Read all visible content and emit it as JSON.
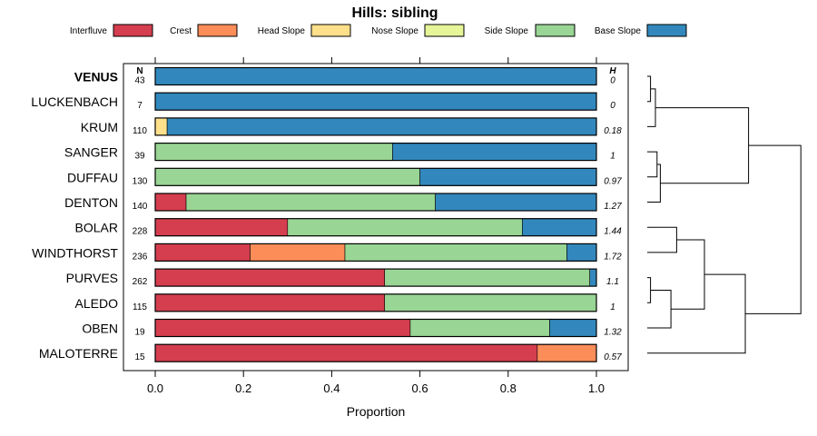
{
  "chart_data": {
    "type": "bar",
    "orientation": "horizontal",
    "stacked": true,
    "title": "Hills: sibling",
    "xlabel": "Proportion",
    "ylabel": "",
    "xlim": [
      0,
      1
    ],
    "x_ticks": [
      "0.0",
      "0.2",
      "0.4",
      "0.6",
      "0.8",
      "1.0"
    ],
    "legend": {
      "placement": "top",
      "entries": [
        {
          "name": "Interfluve",
          "color": "#d53e4f"
        },
        {
          "name": "Crest",
          "color": "#fc8d59"
        },
        {
          "name": "Head Slope",
          "color": "#fee08b"
        },
        {
          "name": "Nose Slope",
          "color": "#e6f598"
        },
        {
          "name": "Side Slope",
          "color": "#99d594"
        },
        {
          "name": "Base Slope",
          "color": "#3288bd"
        }
      ]
    },
    "n_header": "N",
    "h_header": "H",
    "categories": [
      "VENUS",
      "LUCKENBACH",
      "KRUM",
      "SANGER",
      "DUFFAU",
      "DENTON",
      "BOLAR",
      "WINDTHORST",
      "PURVES",
      "ALEDO",
      "OBEN",
      "MALOTERRE"
    ],
    "bold_category": "VENUS",
    "n": [
      "43",
      "7",
      "110",
      "39",
      "130",
      "140",
      "228",
      "236",
      "262",
      "115",
      "19",
      "15"
    ],
    "h": [
      "0",
      "0",
      "0.18",
      "1",
      "0.97",
      "1.27",
      "1.44",
      "1.72",
      "1.1",
      "1",
      "1.32",
      "0.57"
    ],
    "series": [
      {
        "name": "Interfluve",
        "values": [
          0,
          0,
          0,
          0,
          0,
          0.07,
          0.3,
          0.215,
          0.52,
          0.52,
          0.578,
          0.866
        ]
      },
      {
        "name": "Crest",
        "values": [
          0,
          0,
          0,
          0,
          0,
          0,
          0,
          0.215,
          0,
          0,
          0,
          0.134
        ]
      },
      {
        "name": "Head Slope",
        "values": [
          0,
          0,
          0.027,
          0,
          0,
          0,
          0,
          0,
          0,
          0,
          0,
          0
        ]
      },
      {
        "name": "Nose Slope",
        "values": [
          0,
          0,
          0,
          0,
          0,
          0,
          0,
          0,
          0,
          0,
          0,
          0
        ]
      },
      {
        "name": "Side Slope",
        "values": [
          0,
          0,
          0,
          0.538,
          0.6,
          0.565,
          0.532,
          0.503,
          0.465,
          0.48,
          0.316,
          0
        ]
      },
      {
        "name": "Base Slope",
        "values": [
          1,
          1,
          0.973,
          0.462,
          0.4,
          0.365,
          0.168,
          0.067,
          0.015,
          0,
          0.106,
          0
        ]
      }
    ],
    "dendrogram": {
      "merges": [
        {
          "a": 0,
          "b": 1,
          "height": 0.2
        },
        {
          "a": 3,
          "b": 4,
          "height": 0.6
        },
        {
          "a": 8,
          "b": 9,
          "height": 0.2
        },
        {
          "a": "m0",
          "b": 2,
          "height": 0.5
        },
        {
          "a": "m1",
          "b": 5,
          "height": 0.8
        },
        {
          "a": 6,
          "b": 7,
          "height": 1.8
        },
        {
          "a": "m2",
          "b": 10,
          "height": 1.45
        },
        {
          "a": "m3",
          "b": "m4",
          "height": 6.2
        },
        {
          "a": "m5",
          "b": "m6",
          "height": 3.5
        },
        {
          "a": "m8",
          "b": 11,
          "height": 6.0
        },
        {
          "a": "m7",
          "b": "m9",
          "height": 9.4
        }
      ],
      "max_height": 10
    }
  }
}
